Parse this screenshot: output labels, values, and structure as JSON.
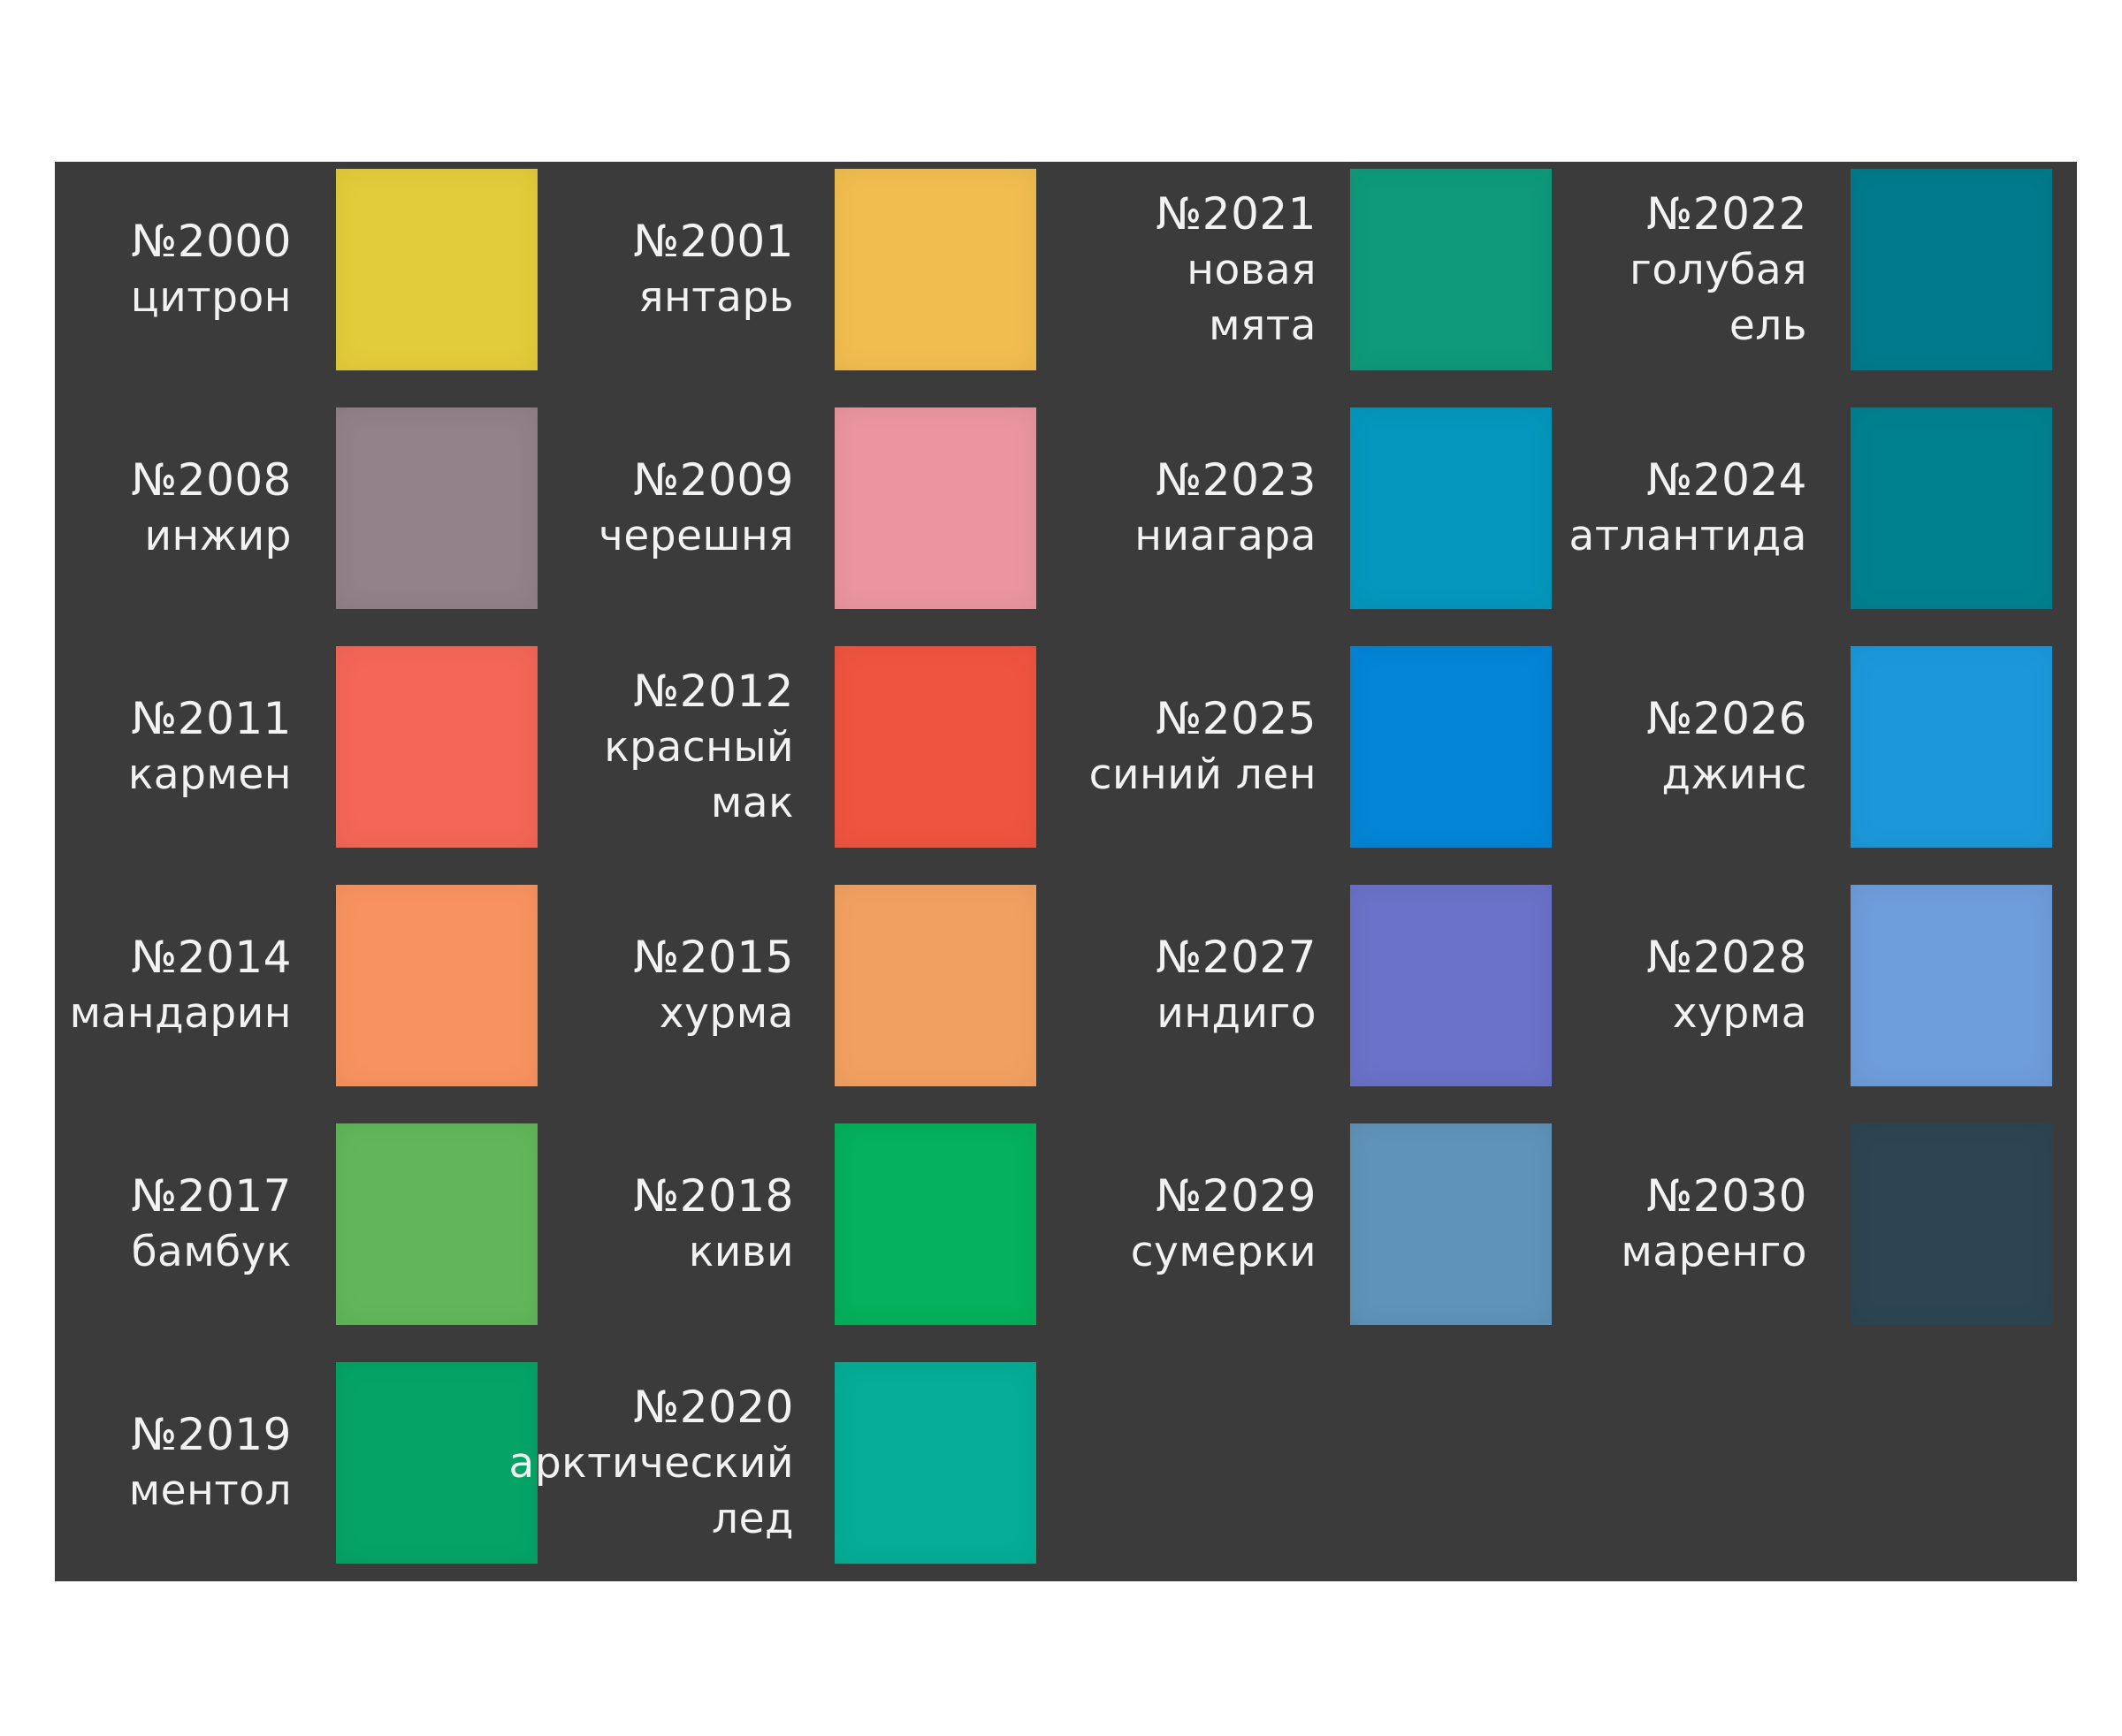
{
  "swatches": [
    {
      "code": "№2000",
      "name": [
        "цитрон"
      ],
      "color": "#e3cc3a"
    },
    {
      "code": "№2001",
      "name": [
        "янтарь"
      ],
      "color": "#f1bd4f"
    },
    {
      "code": "№2021",
      "name": [
        "новая",
        "мята"
      ],
      "color": "#0f9a7c"
    },
    {
      "code": "№2022",
      "name": [
        "голубая",
        "ель"
      ],
      "color": "#007b8d"
    },
    {
      "code": "№2008",
      "name": [
        "инжир"
      ],
      "color": "#918289"
    },
    {
      "code": "№2009",
      "name": [
        "черешня"
      ],
      "color": "#ea95a0"
    },
    {
      "code": "№2023",
      "name": [
        "ниагара"
      ],
      "color": "#0597bd"
    },
    {
      "code": "№2024",
      "name": [
        "атлантида"
      ],
      "color": "#00818f"
    },
    {
      "code": "№2011",
      "name": [
        "кармен"
      ],
      "color": "#f46656"
    },
    {
      "code": "№2012",
      "name": [
        "красный",
        "мак"
      ],
      "color": "#ef5440"
    },
    {
      "code": "№2025",
      "name": [
        "синий лен"
      ],
      "color": "#0485d6"
    },
    {
      "code": "№2026",
      "name": [
        "джинс"
      ],
      "color": "#1b98db"
    },
    {
      "code": "№2014",
      "name": [
        "мандарин"
      ],
      "color": "#f8935f"
    },
    {
      "code": "№2015",
      "name": [
        "хурма"
      ],
      "color": "#f2a061"
    },
    {
      "code": "№2027",
      "name": [
        "индиго"
      ],
      "color": "#6a72c9"
    },
    {
      "code": "№2028",
      "name": [
        "хурма"
      ],
      "color": "#6e9ddb"
    },
    {
      "code": "№2017",
      "name": [
        "бамбук"
      ],
      "color": "#62b659"
    },
    {
      "code": "№2018",
      "name": [
        "киви"
      ],
      "color": "#05b15a"
    },
    {
      "code": "№2029",
      "name": [
        "сумерки"
      ],
      "color": "#5f93b8"
    },
    {
      "code": "№2030",
      "name": [
        "маренго"
      ],
      "color": "#2d4552"
    },
    {
      "code": "№2019",
      "name": [
        "ментол"
      ],
      "color": "#05a466"
    },
    {
      "code": "№2020",
      "name": [
        "арктический",
        "лед"
      ],
      "color": "#06ad96"
    }
  ]
}
